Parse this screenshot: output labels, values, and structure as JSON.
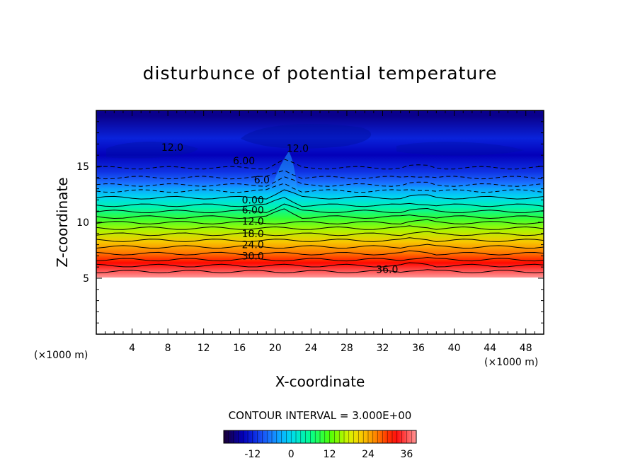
{
  "chart_data": {
    "type": "heatmap",
    "title": "disturbunce of potential temperature",
    "xlabel": "X-coordinate",
    "ylabel": "Z-coordinate",
    "x_unit": "(×1000 m)",
    "x_unit_right": "(×1000 m)",
    "xlim": [
      0,
      50
    ],
    "ylim": [
      0,
      20
    ],
    "x_ticks": [
      4,
      8,
      12,
      16,
      20,
      24,
      28,
      32,
      36,
      40,
      44,
      48
    ],
    "y_ticks": [
      5,
      10,
      15
    ],
    "contour_interval_label": "CONTOUR INTERVAL = 3.000E+00",
    "contour_interval": 3,
    "value_range": [
      -21,
      39
    ],
    "colorbar_ticks": [
      -12,
      0,
      12,
      24,
      36
    ],
    "colormap": [
      "#1a0033",
      "#0000c8",
      "#1e64ff",
      "#00d2ff",
      "#00ff96",
      "#50ff00",
      "#f0f000",
      "#ff9600",
      "#ff0000",
      "#ff9696"
    ],
    "field_profile": {
      "z": [
        5.0,
        5.6,
        6.3,
        7.2,
        8.2,
        9.3,
        10.3,
        11.3,
        12.2,
        13.0,
        13.5,
        14.5,
        16.0,
        17.5,
        19.5
      ],
      "value": [
        39,
        36,
        32,
        27,
        22,
        16,
        10,
        4,
        0,
        -4,
        -7,
        -11,
        -15,
        -12,
        -17
      ]
    },
    "contour_labels": [
      {
        "text": "36.0",
        "x": 32.5,
        "z": 5.8
      },
      {
        "text": "30.0",
        "x": 17.5,
        "z": 7.0
      },
      {
        "text": "24.0",
        "x": 17.5,
        "z": 8.0
      },
      {
        "text": "18.0",
        "x": 17.5,
        "z": 9.0
      },
      {
        "text": "12.0",
        "x": 17.5,
        "z": 10.1
      },
      {
        "text": "6.00",
        "x": 17.5,
        "z": 11.1
      },
      {
        "text": "0.00",
        "x": 17.5,
        "z": 12.0
      },
      {
        "text": "6.00",
        "x": 16.5,
        "z": 15.5
      },
      {
        "text": "12.0",
        "x": 8.5,
        "z": 16.7
      },
      {
        "text": "12.0",
        "x": 22.5,
        "z": 16.6
      },
      {
        "text": "6.0",
        "x": 18.5,
        "z": 13.8
      }
    ]
  }
}
